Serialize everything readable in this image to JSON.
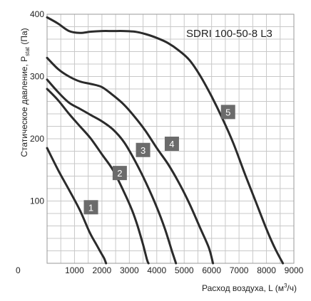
{
  "chart_data": {
    "type": "line",
    "title": "SDRI 100-50-8 L3",
    "ylabel": "Статическое давление, P",
    "ylabel_sub": "stat",
    "ylabel_unit": " (Па)",
    "xlabel": "Расход воздуха, L (м",
    "xlabel_sup": "3",
    "xlabel_end": "/ч)",
    "xlim": [
      0,
      9000
    ],
    "ylim": [
      0,
      400
    ],
    "x_ticks": [
      "0",
      "1000",
      "2000",
      "3000",
      "4000",
      "5000",
      "6000",
      "7000",
      "8000",
      "9000"
    ],
    "y_ticks": [
      "100",
      "200",
      "300",
      "400"
    ],
    "grid": true,
    "series": [
      {
        "name": "1",
        "label_at": [
          1600,
          90
        ],
        "points": [
          [
            0,
            185
          ],
          [
            400,
            150
          ],
          [
            800,
            118
          ],
          [
            1200,
            85
          ],
          [
            1550,
            50
          ],
          [
            1800,
            30
          ],
          [
            1950,
            18
          ],
          [
            2080,
            8
          ],
          [
            2150,
            0
          ]
        ]
      },
      {
        "name": "2",
        "label_at": [
          2650,
          145
        ],
        "points": [
          [
            0,
            280
          ],
          [
            400,
            262
          ],
          [
            800,
            240
          ],
          [
            1200,
            220
          ],
          [
            1600,
            200
          ],
          [
            2000,
            175
          ],
          [
            2400,
            150
          ],
          [
            2800,
            115
          ],
          [
            3100,
            85
          ],
          [
            3300,
            60
          ],
          [
            3500,
            30
          ],
          [
            3650,
            5
          ],
          [
            3700,
            0
          ]
        ]
      },
      {
        "name": "3",
        "label_at": [
          3500,
          182
        ],
        "points": [
          [
            0,
            295
          ],
          [
            400,
            275
          ],
          [
            800,
            258
          ],
          [
            1200,
            248
          ],
          [
            1600,
            238
          ],
          [
            2000,
            228
          ],
          [
            2400,
            215
          ],
          [
            2800,
            195
          ],
          [
            3200,
            165
          ],
          [
            3600,
            130
          ],
          [
            4000,
            90
          ],
          [
            4300,
            55
          ],
          [
            4550,
            20
          ],
          [
            4700,
            0
          ]
        ]
      },
      {
        "name": "4",
        "label_at": [
          4550,
          192
        ],
        "points": [
          [
            0,
            330
          ],
          [
            400,
            312
          ],
          [
            800,
            300
          ],
          [
            1200,
            292
          ],
          [
            1600,
            288
          ],
          [
            2000,
            283
          ],
          [
            2400,
            270
          ],
          [
            2800,
            255
          ],
          [
            3200,
            235
          ],
          [
            3600,
            212
          ],
          [
            4000,
            185
          ],
          [
            4400,
            160
          ],
          [
            4800,
            130
          ],
          [
            5200,
            95
          ],
          [
            5600,
            55
          ],
          [
            5900,
            25
          ],
          [
            6050,
            0
          ]
        ]
      },
      {
        "name": "5",
        "label_at": [
          6600,
          243
        ],
        "points": [
          [
            0,
            395
          ],
          [
            400,
            385
          ],
          [
            800,
            373
          ],
          [
            1200,
            370
          ],
          [
            1600,
            372
          ],
          [
            2000,
            373
          ],
          [
            2400,
            373
          ],
          [
            2800,
            373
          ],
          [
            3200,
            372
          ],
          [
            3600,
            368
          ],
          [
            4000,
            362
          ],
          [
            4400,
            354
          ],
          [
            4800,
            342
          ],
          [
            5200,
            326
          ],
          [
            5600,
            300
          ],
          [
            6000,
            268
          ],
          [
            6400,
            232
          ],
          [
            6800,
            192
          ],
          [
            7200,
            145
          ],
          [
            7600,
            100
          ],
          [
            8000,
            55
          ],
          [
            8300,
            25
          ],
          [
            8600,
            0
          ]
        ]
      }
    ]
  }
}
